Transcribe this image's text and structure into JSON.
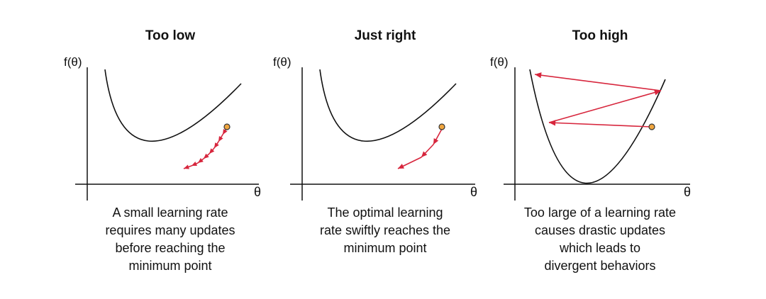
{
  "panels": [
    {
      "title": "Too low",
      "ylabel": "f(θ)",
      "xlabel": "θ",
      "caption_lines": [
        "A small learning rate",
        "requires many updates",
        "before reaching the",
        "minimum point"
      ]
    },
    {
      "title": "Just right",
      "ylabel": "f(θ)",
      "xlabel": "θ",
      "caption_lines": [
        "The optimal learning",
        "rate swiftly reaches the",
        "minimum point"
      ]
    },
    {
      "title": "Too high",
      "ylabel": "f(θ)",
      "xlabel": "θ",
      "caption_lines": [
        "Too large of a learning rate",
        "causes drastic updates",
        "which leads to",
        "divergent behaviors"
      ]
    }
  ],
  "colors": {
    "curve": "#111111",
    "arrow": "#d7263d",
    "point_fill": "#f0a640",
    "point_stroke": "#333333"
  }
}
